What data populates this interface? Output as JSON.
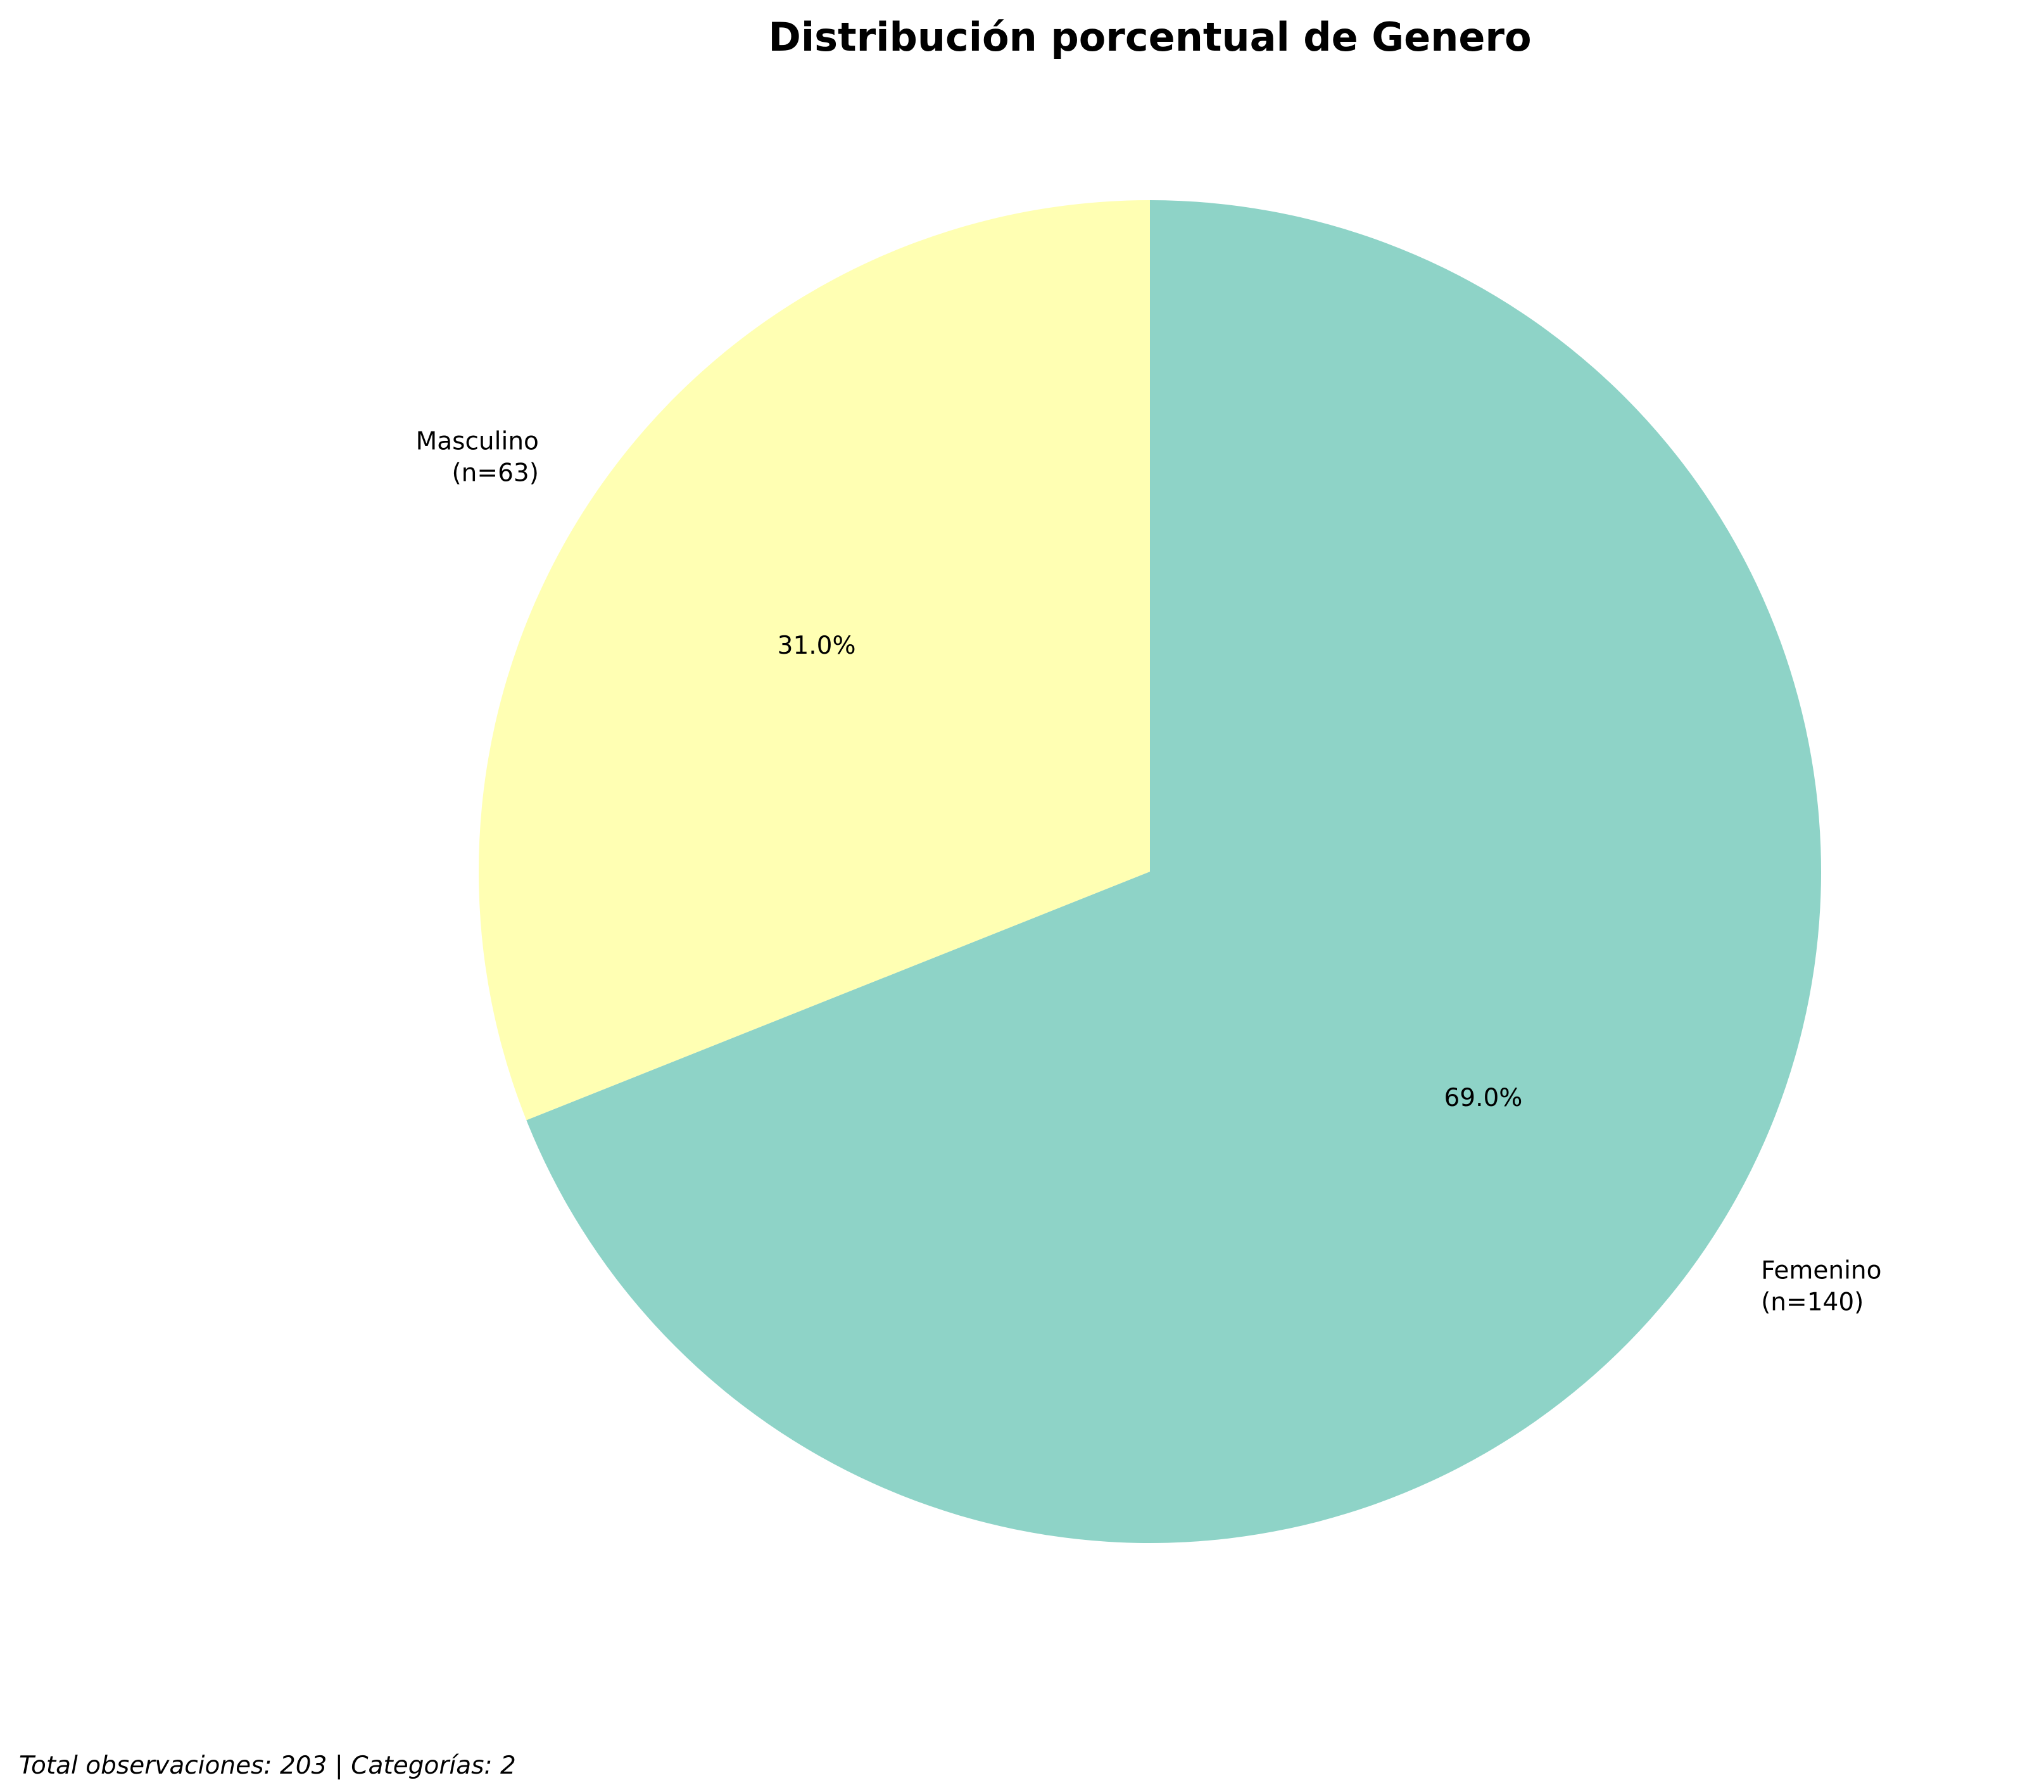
{
  "chart_data": {
    "type": "pie",
    "title": "Distribución porcentual de Genero",
    "categories": [
      "Femenino",
      "Masculino"
    ],
    "values": [
      140,
      63
    ],
    "percentages": [
      69.0,
      31.0
    ],
    "labels": [
      [
        "Femenino",
        "(n=140)"
      ],
      [
        "Masculino",
        "(n=63)"
      ]
    ],
    "pct_labels": [
      "69.0%",
      "31.0%"
    ],
    "colors": [
      "#8ed3c7",
      "#ffffb3"
    ],
    "start_angle_deg": 90,
    "direction": "clockwise"
  },
  "footer": "Total observaciones: 203 | Categorías: 2"
}
